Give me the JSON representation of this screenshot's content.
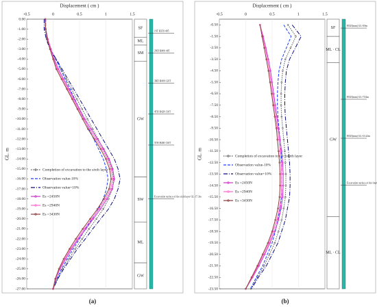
{
  "chart_data": [
    {
      "type": "line",
      "label": "(a)",
      "xlabel": "Displacement ( cm )",
      "ylabel": "GL. m",
      "legend": "lower left",
      "grid": true,
      "xlim": [
        -0.5,
        1.5
      ],
      "xticks": [
        -0.5,
        0,
        0.5,
        1,
        1.5
      ],
      "ylim": [
        0,
        -27
      ],
      "yticks": [
        {
          "value": 0,
          "label": "0.00"
        },
        {
          "value": -1,
          "label": "-1.00"
        },
        {
          "value": -2,
          "label": "-2.00"
        },
        {
          "value": -3,
          "label": "-3.00"
        },
        {
          "value": -4,
          "label": "-4.00"
        },
        {
          "value": -5,
          "label": "-5.00"
        },
        {
          "value": -6,
          "label": "-6.00"
        },
        {
          "value": -7,
          "label": "-7.00"
        },
        {
          "value": -8,
          "label": "-8.00"
        },
        {
          "value": -9,
          "label": "-9.00"
        },
        {
          "value": -10,
          "label": "-10.00"
        },
        {
          "value": -11,
          "label": "-11.00"
        },
        {
          "value": -12,
          "label": "-12.00"
        },
        {
          "value": -13,
          "label": "-13.00"
        },
        {
          "value": -14,
          "label": "-14.00"
        },
        {
          "value": -15,
          "label": "-15.00"
        },
        {
          "value": -16,
          "label": "-16.00"
        },
        {
          "value": -17,
          "label": "-17.00"
        },
        {
          "value": -18,
          "label": "-18.00"
        },
        {
          "value": -19,
          "label": "-19.00"
        },
        {
          "value": -20,
          "label": "-20.00"
        },
        {
          "value": -21,
          "label": "-21.00"
        },
        {
          "value": -22,
          "label": "-22.00"
        },
        {
          "value": -23,
          "label": "-23.00"
        },
        {
          "value": -24,
          "label": "-24.00"
        },
        {
          "value": -25,
          "label": "-25.00"
        },
        {
          "value": -26,
          "label": "-26.00"
        },
        {
          "value": -27,
          "label": "-27.00"
        }
      ],
      "y": [
        0,
        -1,
        -2,
        -3,
        -4,
        -5,
        -6,
        -7,
        -8,
        -9,
        -10,
        -11,
        -12,
        -13,
        -14,
        -15,
        -16,
        -17,
        -18,
        -19,
        -20,
        -21,
        -22,
        -23,
        -24,
        -25,
        -26,
        -27
      ],
      "series": [
        {
          "name": "Completion of excavation to the sixth layer",
          "color": "#555555",
          "style": "dotted",
          "marker": true,
          "values": [
            -0.15,
            -0.15,
            -0.12,
            -0.05,
            0.05,
            0.15,
            0.25,
            0.35,
            0.45,
            0.55,
            0.65,
            0.75,
            0.85,
            0.95,
            1.05,
            1.12,
            1.15,
            1.12,
            1.05,
            0.95,
            0.82,
            0.68,
            0.55,
            0.42,
            0.3,
            0.18,
            0.08,
            0.0
          ]
        },
        {
          "name": "Observation value-10%",
          "color": "#1a3cff",
          "style": "dashed",
          "values": [
            -0.14,
            -0.14,
            -0.11,
            -0.05,
            0.05,
            0.14,
            0.23,
            0.32,
            0.41,
            0.5,
            0.59,
            0.68,
            0.77,
            0.86,
            0.95,
            1.01,
            1.04,
            1.01,
            0.95,
            0.86,
            0.74,
            0.61,
            0.5,
            0.38,
            0.27,
            0.16,
            0.07,
            0.0
          ]
        },
        {
          "name": "Observation value+10%",
          "color": "#0a0a80",
          "style": "dashdot",
          "values": [
            -0.17,
            -0.17,
            -0.13,
            -0.06,
            0.06,
            0.17,
            0.28,
            0.39,
            0.5,
            0.61,
            0.72,
            0.83,
            0.94,
            1.05,
            1.16,
            1.23,
            1.27,
            1.23,
            1.16,
            1.05,
            0.9,
            0.75,
            0.61,
            0.46,
            0.33,
            0.2,
            0.09,
            0.0
          ]
        },
        {
          "name": "Es =2450N",
          "color": "#cc33cc",
          "style": "solid",
          "marker": true,
          "values": [
            -0.15,
            -0.14,
            -0.1,
            -0.04,
            0.02,
            0.1,
            0.2,
            0.3,
            0.4,
            0.5,
            0.6,
            0.72,
            0.84,
            0.96,
            1.06,
            1.13,
            1.16,
            1.12,
            1.02,
            0.9,
            0.76,
            0.62,
            0.48,
            0.35,
            0.24,
            0.13,
            0.05,
            0.0
          ]
        },
        {
          "name": "Es =2940N",
          "color": "#ff66cc",
          "style": "solid",
          "marker": true,
          "values": [
            -0.15,
            -0.14,
            -0.1,
            -0.05,
            0.01,
            0.08,
            0.18,
            0.28,
            0.38,
            0.48,
            0.58,
            0.69,
            0.81,
            0.93,
            1.03,
            1.1,
            1.13,
            1.09,
            0.99,
            0.87,
            0.73,
            0.59,
            0.46,
            0.33,
            0.22,
            0.12,
            0.05,
            0.0
          ]
        },
        {
          "name": "Es =3430N",
          "color": "#8b3a3a",
          "style": "solid",
          "marker": true,
          "values": [
            -0.15,
            -0.14,
            -0.11,
            -0.06,
            0.0,
            0.06,
            0.16,
            0.26,
            0.36,
            0.46,
            0.56,
            0.66,
            0.78,
            0.9,
            1.0,
            1.07,
            1.1,
            1.06,
            0.96,
            0.84,
            0.7,
            0.56,
            0.43,
            0.31,
            0.2,
            0.11,
            0.04,
            0.0
          ]
        }
      ],
      "layers": [
        {
          "name": "SF",
          "top": 0,
          "bottom": -1.8
        },
        {
          "name": "ML",
          "top": -1.8,
          "bottom": -2.6
        },
        {
          "name": "SM",
          "top": -2.6,
          "bottom": -4.2
        },
        {
          "name": "GW",
          "top": -4.2,
          "bottom": -15.8
        },
        {
          "name": "SW",
          "top": -15.8,
          "bottom": -20.3
        },
        {
          "name": "ML",
          "top": -20.3,
          "bottom": -24.4
        },
        {
          "name": "GW",
          "top": -24.4,
          "bottom": -27
        }
      ],
      "annotations": [
        {
          "text": "1ST H350·405",
          "y": -1.2
        },
        {
          "text": "2ND H400·405",
          "y": -3.2
        },
        {
          "text": "3RD H400·120T",
          "y": -6.2
        },
        {
          "text": "4TH H428·130T",
          "y": -9.3
        },
        {
          "text": "5TH H400·130T",
          "y": -12.4
        },
        {
          "text": "Excavation surface of the sixth layer GL-17.3m",
          "y": -17.8
        }
      ]
    },
    {
      "type": "line",
      "label": "(b)",
      "xlabel": "Displacement ( cm )",
      "ylabel": "GL. m",
      "legend": "upper left",
      "grid": true,
      "xlim": [
        -0.5,
        1.5
      ],
      "xticks": [
        -0.5,
        0,
        0.5,
        1,
        1.5
      ],
      "ylim": [
        0,
        -23.5
      ],
      "yticks": [
        {
          "value": -0.5,
          "label": "-0.50"
        },
        {
          "value": -1.5,
          "label": "-1.50"
        },
        {
          "value": -2.5,
          "label": "-2.50"
        },
        {
          "value": -3.5,
          "label": "-3.50"
        },
        {
          "value": -4.5,
          "label": "-4.50"
        },
        {
          "value": -5.5,
          "label": "-5.50"
        },
        {
          "value": -6.5,
          "label": "-6.50"
        },
        {
          "value": -7.5,
          "label": "-7.50"
        },
        {
          "value": -8.5,
          "label": "-8.50"
        },
        {
          "value": -9.5,
          "label": "-9.50"
        },
        {
          "value": -10.5,
          "label": "-10.50"
        },
        {
          "value": -11.5,
          "label": "-11.50"
        },
        {
          "value": -12.5,
          "label": "-12.50"
        },
        {
          "value": -13.5,
          "label": "-13.50"
        },
        {
          "value": -14.5,
          "label": "-14.50"
        },
        {
          "value": -15.5,
          "label": "-15.50"
        },
        {
          "value": -16.5,
          "label": "-16.50"
        },
        {
          "value": -17.5,
          "label": "-17.50"
        },
        {
          "value": -18.5,
          "label": "-18.50"
        },
        {
          "value": -19.5,
          "label": "-19.50"
        },
        {
          "value": -20.5,
          "label": "-20.50"
        },
        {
          "value": -21.5,
          "label": "-21.50"
        },
        {
          "value": -22.5,
          "label": "-22.50"
        },
        {
          "value": -23.5,
          "label": "-23.50"
        }
      ],
      "y": [
        -0.5,
        -1.5,
        -2.5,
        -3.5,
        -4.5,
        -5.5,
        -6.5,
        -7.5,
        -8.5,
        -9.5,
        -10.5,
        -11.5,
        -12.5,
        -13.5,
        -14.5,
        -15.5,
        -16.5,
        -17.5,
        -18.5,
        -19.5,
        -20.5,
        -21.5,
        -22.5,
        -23.5
      ],
      "series": [
        {
          "name": "Completion of excavation to the fourth layer",
          "color": "#555555",
          "style": "dotted",
          "marker": true,
          "values": [
            0.8,
            0.95,
            0.85,
            0.75,
            0.7,
            0.68,
            0.67,
            0.67,
            0.68,
            0.7,
            0.72,
            0.74,
            0.75,
            0.76,
            0.76,
            0.75,
            0.72,
            0.68,
            0.62,
            0.55,
            0.45,
            0.35,
            0.22,
            0.1
          ]
        },
        {
          "name": "Observation value-10%",
          "color": "#1a3cff",
          "style": "dashed",
          "values": [
            0.72,
            0.86,
            0.77,
            0.68,
            0.63,
            0.61,
            0.6,
            0.6,
            0.61,
            0.63,
            0.65,
            0.67,
            0.68,
            0.68,
            0.68,
            0.68,
            0.65,
            0.61,
            0.56,
            0.5,
            0.41,
            0.32,
            0.2,
            0.09
          ]
        },
        {
          "name": "Observation value+10%",
          "color": "#0a0a80",
          "style": "dashdot",
          "values": [
            0.88,
            1.05,
            0.94,
            0.83,
            0.77,
            0.75,
            0.74,
            0.74,
            0.75,
            0.77,
            0.79,
            0.81,
            0.83,
            0.84,
            0.84,
            0.83,
            0.79,
            0.75,
            0.68,
            0.61,
            0.5,
            0.39,
            0.24,
            0.11
          ]
        },
        {
          "name": "Es =2450N",
          "color": "#cc33cc",
          "style": "solid",
          "marker": true,
          "values": [
            0.27,
            0.33,
            0.38,
            0.43,
            0.47,
            0.5,
            0.53,
            0.56,
            0.59,
            0.62,
            0.65,
            0.68,
            0.7,
            0.71,
            0.71,
            0.7,
            0.67,
            0.62,
            0.55,
            0.46,
            0.36,
            0.25,
            0.13,
            0.0
          ]
        },
        {
          "name": "Es =2940N",
          "color": "#ff66cc",
          "style": "solid",
          "marker": true,
          "values": [
            0.27,
            0.32,
            0.37,
            0.41,
            0.45,
            0.48,
            0.51,
            0.54,
            0.57,
            0.6,
            0.63,
            0.65,
            0.67,
            0.68,
            0.68,
            0.67,
            0.64,
            0.59,
            0.52,
            0.44,
            0.34,
            0.23,
            0.12,
            0.0
          ]
        },
        {
          "name": "Es =3430N",
          "color": "#8b3a3a",
          "style": "solid",
          "marker": true,
          "values": [
            0.27,
            0.31,
            0.35,
            0.39,
            0.43,
            0.46,
            0.49,
            0.52,
            0.55,
            0.58,
            0.6,
            0.62,
            0.64,
            0.65,
            0.65,
            0.64,
            0.61,
            0.56,
            0.5,
            0.42,
            0.32,
            0.22,
            0.11,
            0.0
          ]
        }
      ],
      "layers": [
        {
          "name": "SF",
          "top": 0,
          "bottom": -1.5
        },
        {
          "name": "ML · CL",
          "top": -1.5,
          "bottom": -3.8
        },
        {
          "name": "GW",
          "top": -3.8,
          "bottom": -17.2
        },
        {
          "name": "ML · CL",
          "top": -17.2,
          "bottom": -23.5
        }
      ],
      "annotations": [
        {
          "text": "H525(mm) GL-0.9m",
          "y": -0.6
        },
        {
          "text": "H525(mm) GL-7.02m",
          "y": -6.8
        },
        {
          "text": "H525(mm) GL-10.22m",
          "y": -10.2
        },
        {
          "text": "Excavation surface of the fourth layer GL-14.0m",
          "y": -14.3
        }
      ]
    }
  ]
}
